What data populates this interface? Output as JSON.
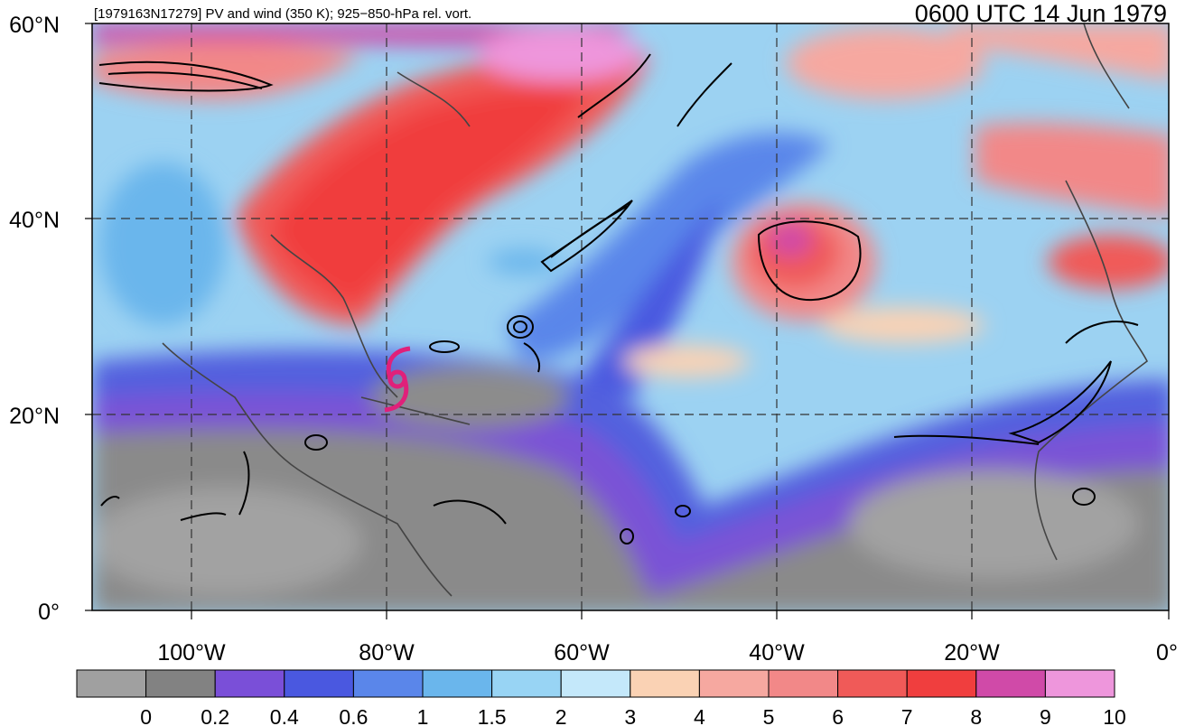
{
  "header": {
    "left_title": "[1979163N17279] PV and wind (350 K); 925−850-hPa rel. vort.",
    "right_title": "0600 UTC 14 Jun 1979"
  },
  "map": {
    "lon_range": [
      -110,
      0
    ],
    "lat_range": [
      0,
      60
    ],
    "lat_labels": [
      "0°",
      "20°N",
      "40°N",
      "60°N"
    ],
    "lon_labels": [
      "100°W",
      "80°W",
      "60°W",
      "40°W",
      "20°W",
      "0°"
    ],
    "storm_symbol": "tropical-storm-icon",
    "storm_color": "#e0207a"
  },
  "colorbar": {
    "colors": [
      "#a0a0a0",
      "#828282",
      "#7a4fd8",
      "#4a58e0",
      "#5a86ea",
      "#6ab6ec",
      "#98d4f4",
      "#c4e8fa",
      "#fad2b4",
      "#f6a8a0",
      "#f28888",
      "#f05a58",
      "#f03e3e",
      "#d04aa8",
      "#ee96dc"
    ],
    "tick_labels": [
      "0",
      "0.2",
      "0.4",
      "0.6",
      "1",
      "1.5",
      "2",
      "3",
      "4",
      "5",
      "6",
      "7",
      "8",
      "9",
      "10"
    ]
  }
}
